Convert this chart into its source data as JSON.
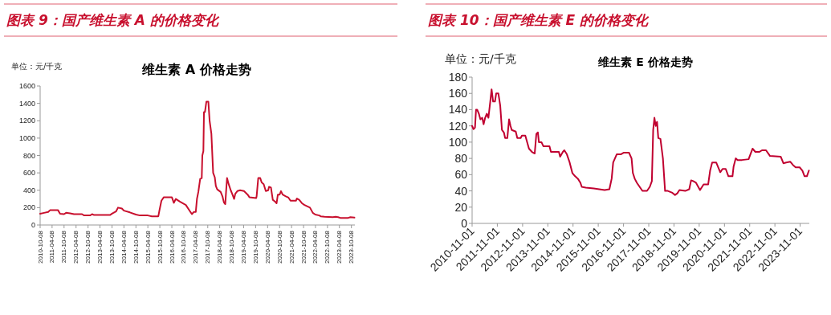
{
  "chart_data": [
    {
      "type": "line",
      "title": "图表 9：国产维生素 A 的价格变化",
      "subtitle": "维生素 A 价格走势",
      "ylabel": "单位：元/千克",
      "x": [
        "2010-10-08",
        "2010-12-08",
        "2011-02-08",
        "2011-03-08",
        "2011-07-08",
        "2011-08-08",
        "2011-10-08",
        "2011-11-08",
        "2012-01-08",
        "2012-03-08",
        "2012-07-08",
        "2012-08-08",
        "2012-11-08",
        "2012-12-08",
        "2013-01-08",
        "2013-09-08",
        "2013-10-08",
        "2013-12-08",
        "2014-01-08",
        "2014-03-08",
        "2014-04-08",
        "2014-07-08",
        "2014-10-08",
        "2014-12-08",
        "2015-04-08",
        "2015-06-08",
        "2015-09-15",
        "2015-10-01",
        "2015-11-01",
        "2015-12-08",
        "2016-04-08",
        "2016-05-08",
        "2016-06-08",
        "2016-08-08",
        "2016-11-08",
        "2017-01-08",
        "2017-02-08",
        "2017-03-08",
        "2017-04-08",
        "2017-04-26",
        "2017-05-17",
        "2017-06-14",
        "2017-07-08",
        "2017-07-17",
        "2017-08-02",
        "2017-08-11",
        "2017-08-26",
        "2017-09-17",
        "2017-10-17",
        "2017-11-05",
        "2017-12-02",
        "2017-12-29",
        "2018-01-23",
        "2018-02-08",
        "2018-03-01",
        "2018-04-23",
        "2018-05-20",
        "2018-06-11",
        "2018-07-02",
        "2018-07-14",
        "2018-07-29",
        "2018-08-23",
        "2018-09-23",
        "2018-10-20",
        "2018-11-14",
        "2018-12-02",
        "2019-01-02",
        "2019-02-14",
        "2019-04-14",
        "2019-06-08",
        "2019-07-05",
        "2019-10-17",
        "2019-10-23",
        "2019-11-17",
        "2019-12-17",
        "2020-01-08",
        "2020-02-08",
        "2020-03-11",
        "2020-04-17",
        "2020-04-29",
        "2020-05-29",
        "2020-06-26",
        "2020-07-29",
        "2020-08-23",
        "2020-09-11",
        "2020-10-08",
        "2020-10-29",
        "2020-11-23",
        "2021-01-11",
        "2021-02-20",
        "2021-03-23",
        "2021-06-14",
        "2021-06-29",
        "2021-08-02",
        "2021-09-14",
        "2021-10-23",
        "2022-01-14",
        "2022-02-26",
        "2022-04-05",
        "2022-06-05",
        "2022-06-26",
        "2022-08-26",
        "2022-12-29",
        "2023-02-08",
        "2023-03-20",
        "2023-04-29",
        "2023-08-11",
        "2023-09-23",
        "2023-11-23"
      ],
      "series": [
        {
          "color": "#c8102e",
          "values": [
            130,
            140,
            150,
            170,
            170,
            130,
            125,
            140,
            135,
            125,
            125,
            110,
            110,
            125,
            115,
            115,
            130,
            155,
            200,
            190,
            165,
            145,
            120,
            110,
            110,
            100,
            100,
            165,
            280,
            320,
            320,
            255,
            300,
            270,
            230,
            160,
            125,
            150,
            150,
            300,
            380,
            530,
            540,
            800,
            850,
            1300,
            1300,
            1420,
            1420,
            1200,
            1050,
            600,
            550,
            450,
            410,
            380,
            330,
            260,
            240,
            380,
            540,
            470,
            400,
            350,
            300,
            360,
            390,
            400,
            390,
            350,
            320,
            310,
            330,
            540,
            540,
            490,
            470,
            390,
            400,
            440,
            430,
            290,
            270,
            250,
            350,
            350,
            390,
            350,
            330,
            315,
            280,
            280,
            305,
            290,
            250,
            230,
            200,
            140,
            120,
            110,
            100,
            95,
            90,
            95,
            90,
            80,
            80,
            90,
            85
          ]
        }
      ],
      "xlim": [
        "2010-10-08",
        "2023-11-30"
      ],
      "xticks": [
        "2010-10-08",
        "2011-04-08",
        "2011-10-08",
        "2012-04-08",
        "2012-10-08",
        "2013-04-08",
        "2013-10-08",
        "2014-04-08",
        "2014-10-08",
        "2015-04-08",
        "2015-10-08",
        "2016-04-08",
        "2016-10-08",
        "2017-04-08",
        "2017-10-08",
        "2018-04-08",
        "2018-10-08",
        "2019-04-08",
        "2019-10-08",
        "2020-04-08",
        "2020-10-08",
        "2021-04-08",
        "2021-10-08",
        "2022-04-08",
        "2022-10-08",
        "2023-04-08",
        "2023-10-08"
      ],
      "ylim": [
        0,
        1600
      ],
      "yticks": [
        0,
        200,
        400,
        600,
        800,
        1000,
        1200,
        1400,
        1600
      ],
      "grid": false
    },
    {
      "type": "line",
      "title": "图表 10：国产维生素 E 的价格变化",
      "subtitle": "维生素 E 价格走势",
      "ylabel": "单位：元/千克",
      "x": [
        "2010-11-01",
        "2010-11-20",
        "2010-12-13",
        "2010-12-28",
        "2011-01-13",
        "2011-02-07",
        "2011-03-01",
        "2011-03-28",
        "2011-04-16",
        "2011-05-09",
        "2011-06-01",
        "2011-06-25",
        "2011-07-22",
        "2011-08-10",
        "2011-09-01",
        "2011-09-28",
        "2011-10-16",
        "2011-11-16",
        "2011-12-13",
        "2012-01-07",
        "2012-02-04",
        "2012-02-22",
        "2012-03-25",
        "2012-04-19",
        "2012-05-10",
        "2012-05-28",
        "2012-07-25",
        "2012-08-16",
        "2012-10-04",
        "2012-10-22",
        "2012-12-10",
        "2013-02-01",
        "2013-03-16",
        "2013-04-25",
        "2013-05-19",
        "2013-06-10",
        "2013-06-25",
        "2013-08-01",
        "2013-08-28",
        "2013-11-25",
        "2013-12-16",
        "2014-04-10",
        "2014-04-28",
        "2014-06-07",
        "2014-06-28",
        "2014-08-04",
        "2014-09-13",
        "2014-10-22",
        "2014-12-01",
        "2015-01-10",
        "2015-02-16",
        "2015-03-07",
        "2015-05-04",
        "2015-08-28",
        "2016-02-01",
        "2016-04-10",
        "2016-05-13",
        "2016-06-04",
        "2016-07-25",
        "2016-09-22",
        "2016-11-01",
        "2017-01-19",
        "2017-02-25",
        "2017-03-16",
        "2017-04-12",
        "2017-05-13",
        "2017-06-22",
        "2017-08-01",
        "2017-10-07",
        "2017-11-16",
        "2017-12-16",
        "2018-01-04",
        "2018-01-22",
        "2018-02-10",
        "2018-03-01",
        "2018-03-19",
        "2018-04-19",
        "2018-05-25",
        "2018-06-25",
        "2018-08-04",
        "2018-10-01",
        "2018-11-16",
        "2018-12-19",
        "2019-01-19",
        "2019-04-13",
        "2019-06-10",
        "2019-07-07",
        "2019-08-07",
        "2019-09-16",
        "2019-11-13",
        "2020-01-04",
        "2020-03-10",
        "2020-04-07",
        "2020-05-07",
        "2020-07-04",
        "2020-09-01",
        "2020-10-04",
        "2020-11-19",
        "2020-12-28",
        "2021-02-25",
        "2021-03-13",
        "2021-04-13",
        "2021-05-10",
        "2021-07-10",
        "2021-10-16",
        "2021-12-13",
        "2022-01-22",
        "2022-03-19",
        "2022-04-28",
        "2022-06-25",
        "2022-08-22",
        "2023-01-25",
        "2023-03-04",
        "2023-04-13",
        "2023-06-10",
        "2023-07-19",
        "2023-08-28",
        "2023-10-25",
        "2023-12-04",
        "2024-01-04",
        "2024-02-07",
        "2024-03-07"
      ],
      "series": [
        {
          "color": "#c00030",
          "values": [
            120,
            116,
            118,
            140,
            140,
            135,
            128,
            130,
            122,
            130,
            135,
            130,
            150,
            165,
            150,
            150,
            160,
            160,
            145,
            115,
            112,
            105,
            105,
            128,
            120,
            115,
            113,
            105,
            105,
            108,
            108,
            92,
            88,
            86,
            110,
            112,
            100,
            100,
            95,
            95,
            88,
            88,
            82,
            88,
            90,
            85,
            75,
            62,
            58,
            55,
            50,
            45,
            44,
            43,
            41,
            42,
            55,
            75,
            85,
            85,
            87,
            87,
            80,
            62,
            55,
            50,
            45,
            40,
            40,
            45,
            52,
            115,
            130,
            120,
            125,
            105,
            104,
            80,
            40,
            40,
            38,
            35,
            37,
            41,
            40,
            42,
            53,
            52,
            50,
            41,
            48,
            48,
            65,
            75,
            75,
            63,
            67,
            67,
            58,
            58,
            70,
            80,
            78,
            78,
            79,
            92,
            88,
            88,
            90,
            90,
            83,
            82,
            74,
            75,
            76,
            72,
            69,
            69,
            65,
            58,
            58,
            65
          ]
        }
      ],
      "xlim": [
        "2010-11-01",
        "2024-03-13"
      ],
      "xticks": [
        "2010-11-01",
        "2011-11-01",
        "2012-11-01",
        "2013-11-01",
        "2014-11-01",
        "2015-11-01",
        "2016-11-01",
        "2017-11-01",
        "2018-11-01",
        "2019-11-01",
        "2020-11-01",
        "2021-11-01",
        "2022-11-01",
        "2023-11-01"
      ],
      "ylim": [
        0,
        180
      ],
      "yticks": [
        0,
        20,
        40,
        60,
        80,
        100,
        120,
        140,
        160,
        180
      ],
      "grid": false
    }
  ]
}
